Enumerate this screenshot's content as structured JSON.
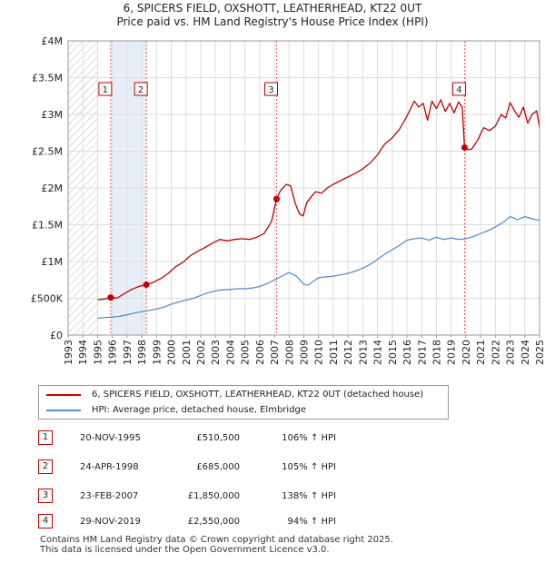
{
  "title": {
    "line1": "6, SPICERS FIELD, OXSHOTT, LEATHERHEAD, KT22 0UT",
    "line2": "Price paid vs. HM Land Registry's House Price Index (HPI)"
  },
  "colors": {
    "property": "#c00000",
    "hpi": "#5b8fc9",
    "shade": "#e8eef8",
    "grid": "#dddddd",
    "marker_line": "#e06060"
  },
  "chart_data": {
    "type": "line",
    "title": "6, SPICERS FIELD, OXSHOTT, LEATHERHEAD, KT22 0UT",
    "xlabel": "",
    "ylabel": "",
    "xlim": [
      1993,
      2025
    ],
    "ylim": [
      0,
      4000000
    ],
    "y_ticks": [
      0,
      500000,
      1000000,
      1500000,
      2000000,
      2500000,
      3000000,
      3500000,
      4000000
    ],
    "y_tick_labels": [
      "£0",
      "£500K",
      "£1M",
      "£1.5M",
      "£2M",
      "£2.5M",
      "£3M",
      "£3.5M",
      "£4M"
    ],
    "x_ticks": [
      "1993",
      "1994",
      "1995",
      "1996",
      "1997",
      "1998",
      "1999",
      "2000",
      "2001",
      "2002",
      "2003",
      "2004",
      "2005",
      "2006",
      "2007",
      "2008",
      "2009",
      "2010",
      "2011",
      "2012",
      "2013",
      "2014",
      "2015",
      "2016",
      "2017",
      "2018",
      "2019",
      "2020",
      "2021",
      "2022",
      "2023",
      "2024",
      "2025"
    ],
    "hatched_until": 1995.0,
    "series": [
      {
        "name": "6, SPICERS FIELD, OXSHOTT, LEATHERHEAD, KT22 0UT (detached house)",
        "x": [
          1995.0,
          1995.5,
          1995.9,
          1996.3,
          1996.8,
          1997.3,
          1997.8,
          1998.3,
          1998.8,
          1999.3,
          1999.8,
          2000.3,
          2000.8,
          2001.3,
          2001.8,
          2002.3,
          2002.8,
          2003.3,
          2003.8,
          2004.3,
          2004.8,
          2005.3,
          2005.8,
          2006.3,
          2006.8,
          2007.15,
          2007.4,
          2007.8,
          2008.1,
          2008.4,
          2008.7,
          2008.95,
          2009.2,
          2009.5,
          2009.8,
          2010.2,
          2010.6,
          2011.0,
          2011.5,
          2012.0,
          2012.5,
          2013.0,
          2013.5,
          2014.0,
          2014.5,
          2015.0,
          2015.5,
          2015.9,
          2016.2,
          2016.5,
          2016.8,
          2017.1,
          2017.4,
          2017.7,
          2018.0,
          2018.3,
          2018.6,
          2018.9,
          2019.2,
          2019.5,
          2019.75,
          2019.91,
          2020.1,
          2020.4,
          2020.8,
          2021.2,
          2021.6,
          2022.0,
          2022.4,
          2022.7,
          2023.0,
          2023.3,
          2023.6,
          2023.9,
          2024.2,
          2024.5,
          2024.8,
          2025.0
        ],
        "values": [
          480000,
          490000,
          510500,
          500000,
          560000,
          620000,
          660000,
          685000,
          720000,
          770000,
          840000,
          930000,
          990000,
          1080000,
          1140000,
          1190000,
          1250000,
          1300000,
          1280000,
          1300000,
          1310000,
          1300000,
          1330000,
          1380000,
          1540000,
          1850000,
          1960000,
          2050000,
          2030000,
          1800000,
          1650000,
          1620000,
          1800000,
          1880000,
          1950000,
          1930000,
          2000000,
          2050000,
          2100000,
          2150000,
          2200000,
          2260000,
          2340000,
          2450000,
          2600000,
          2680000,
          2800000,
          2940000,
          3060000,
          3180000,
          3100000,
          3150000,
          2920000,
          3180000,
          3080000,
          3200000,
          3040000,
          3150000,
          3020000,
          3170000,
          3100000,
          2550000,
          2520000,
          2530000,
          2650000,
          2820000,
          2780000,
          2840000,
          3000000,
          2950000,
          3160000,
          3050000,
          2960000,
          3100000,
          2880000,
          3000000,
          3050000,
          2820000
        ]
      },
      {
        "name": "HPI: Average price, detached house, Elmbridge",
        "x": [
          1995.0,
          1995.5,
          1996.0,
          1996.5,
          1997.0,
          1997.5,
          1998.0,
          1998.5,
          1999.0,
          1999.5,
          2000.0,
          2000.5,
          2001.0,
          2001.5,
          2002.0,
          2002.5,
          2003.0,
          2003.5,
          2004.0,
          2004.5,
          2005.0,
          2005.5,
          2006.0,
          2006.5,
          2007.0,
          2007.5,
          2008.0,
          2008.5,
          2009.0,
          2009.3,
          2009.7,
          2010.0,
          2010.5,
          2011.0,
          2011.5,
          2012.0,
          2012.5,
          2013.0,
          2013.5,
          2014.0,
          2014.5,
          2015.0,
          2015.5,
          2016.0,
          2016.5,
          2017.0,
          2017.5,
          2018.0,
          2018.5,
          2019.0,
          2019.5,
          2020.0,
          2020.5,
          2021.0,
          2021.5,
          2022.0,
          2022.5,
          2023.0,
          2023.5,
          2024.0,
          2024.5,
          2025.0
        ],
        "values": [
          230000,
          240000,
          245000,
          255000,
          275000,
          300000,
          320000,
          335000,
          355000,
          380000,
          420000,
          450000,
          475000,
          500000,
          540000,
          575000,
          600000,
          615000,
          620000,
          630000,
          630000,
          640000,
          660000,
          700000,
          750000,
          800000,
          850000,
          800000,
          690000,
          680000,
          740000,
          780000,
          790000,
          800000,
          820000,
          840000,
          870000,
          910000,
          960000,
          1030000,
          1100000,
          1160000,
          1220000,
          1290000,
          1310000,
          1320000,
          1290000,
          1330000,
          1300000,
          1320000,
          1300000,
          1310000,
          1340000,
          1380000,
          1420000,
          1470000,
          1530000,
          1610000,
          1570000,
          1610000,
          1580000,
          1560000
        ]
      }
    ],
    "transactions": [
      {
        "num": "1",
        "x": 1995.89,
        "price": 510500
      },
      {
        "num": "2",
        "x": 1998.31,
        "price": 685000
      },
      {
        "num": "3",
        "x": 2007.15,
        "price": 1850000
      },
      {
        "num": "4",
        "x": 2019.91,
        "price": 2550000
      }
    ]
  },
  "legend": {
    "property_label": "6, SPICERS FIELD, OXSHOTT, LEATHERHEAD, KT22 0UT (detached house)",
    "hpi_label": "HPI: Average price, detached house, Elmbridge"
  },
  "sales": [
    {
      "num": "1",
      "date": "20-NOV-1995",
      "price": "£510,500",
      "hpi": "106% ↑ HPI"
    },
    {
      "num": "2",
      "date": "24-APR-1998",
      "price": "£685,000",
      "hpi": "105% ↑ HPI"
    },
    {
      "num": "3",
      "date": "23-FEB-2007",
      "price": "£1,850,000",
      "hpi": "138% ↑ HPI"
    },
    {
      "num": "4",
      "date": "29-NOV-2019",
      "price": "£2,550,000",
      "hpi": "94% ↑ HPI"
    }
  ],
  "footer": {
    "line1": "Contains HM Land Registry data © Crown copyright and database right 2025.",
    "line2": "This data is licensed under the Open Government Licence v3.0."
  }
}
